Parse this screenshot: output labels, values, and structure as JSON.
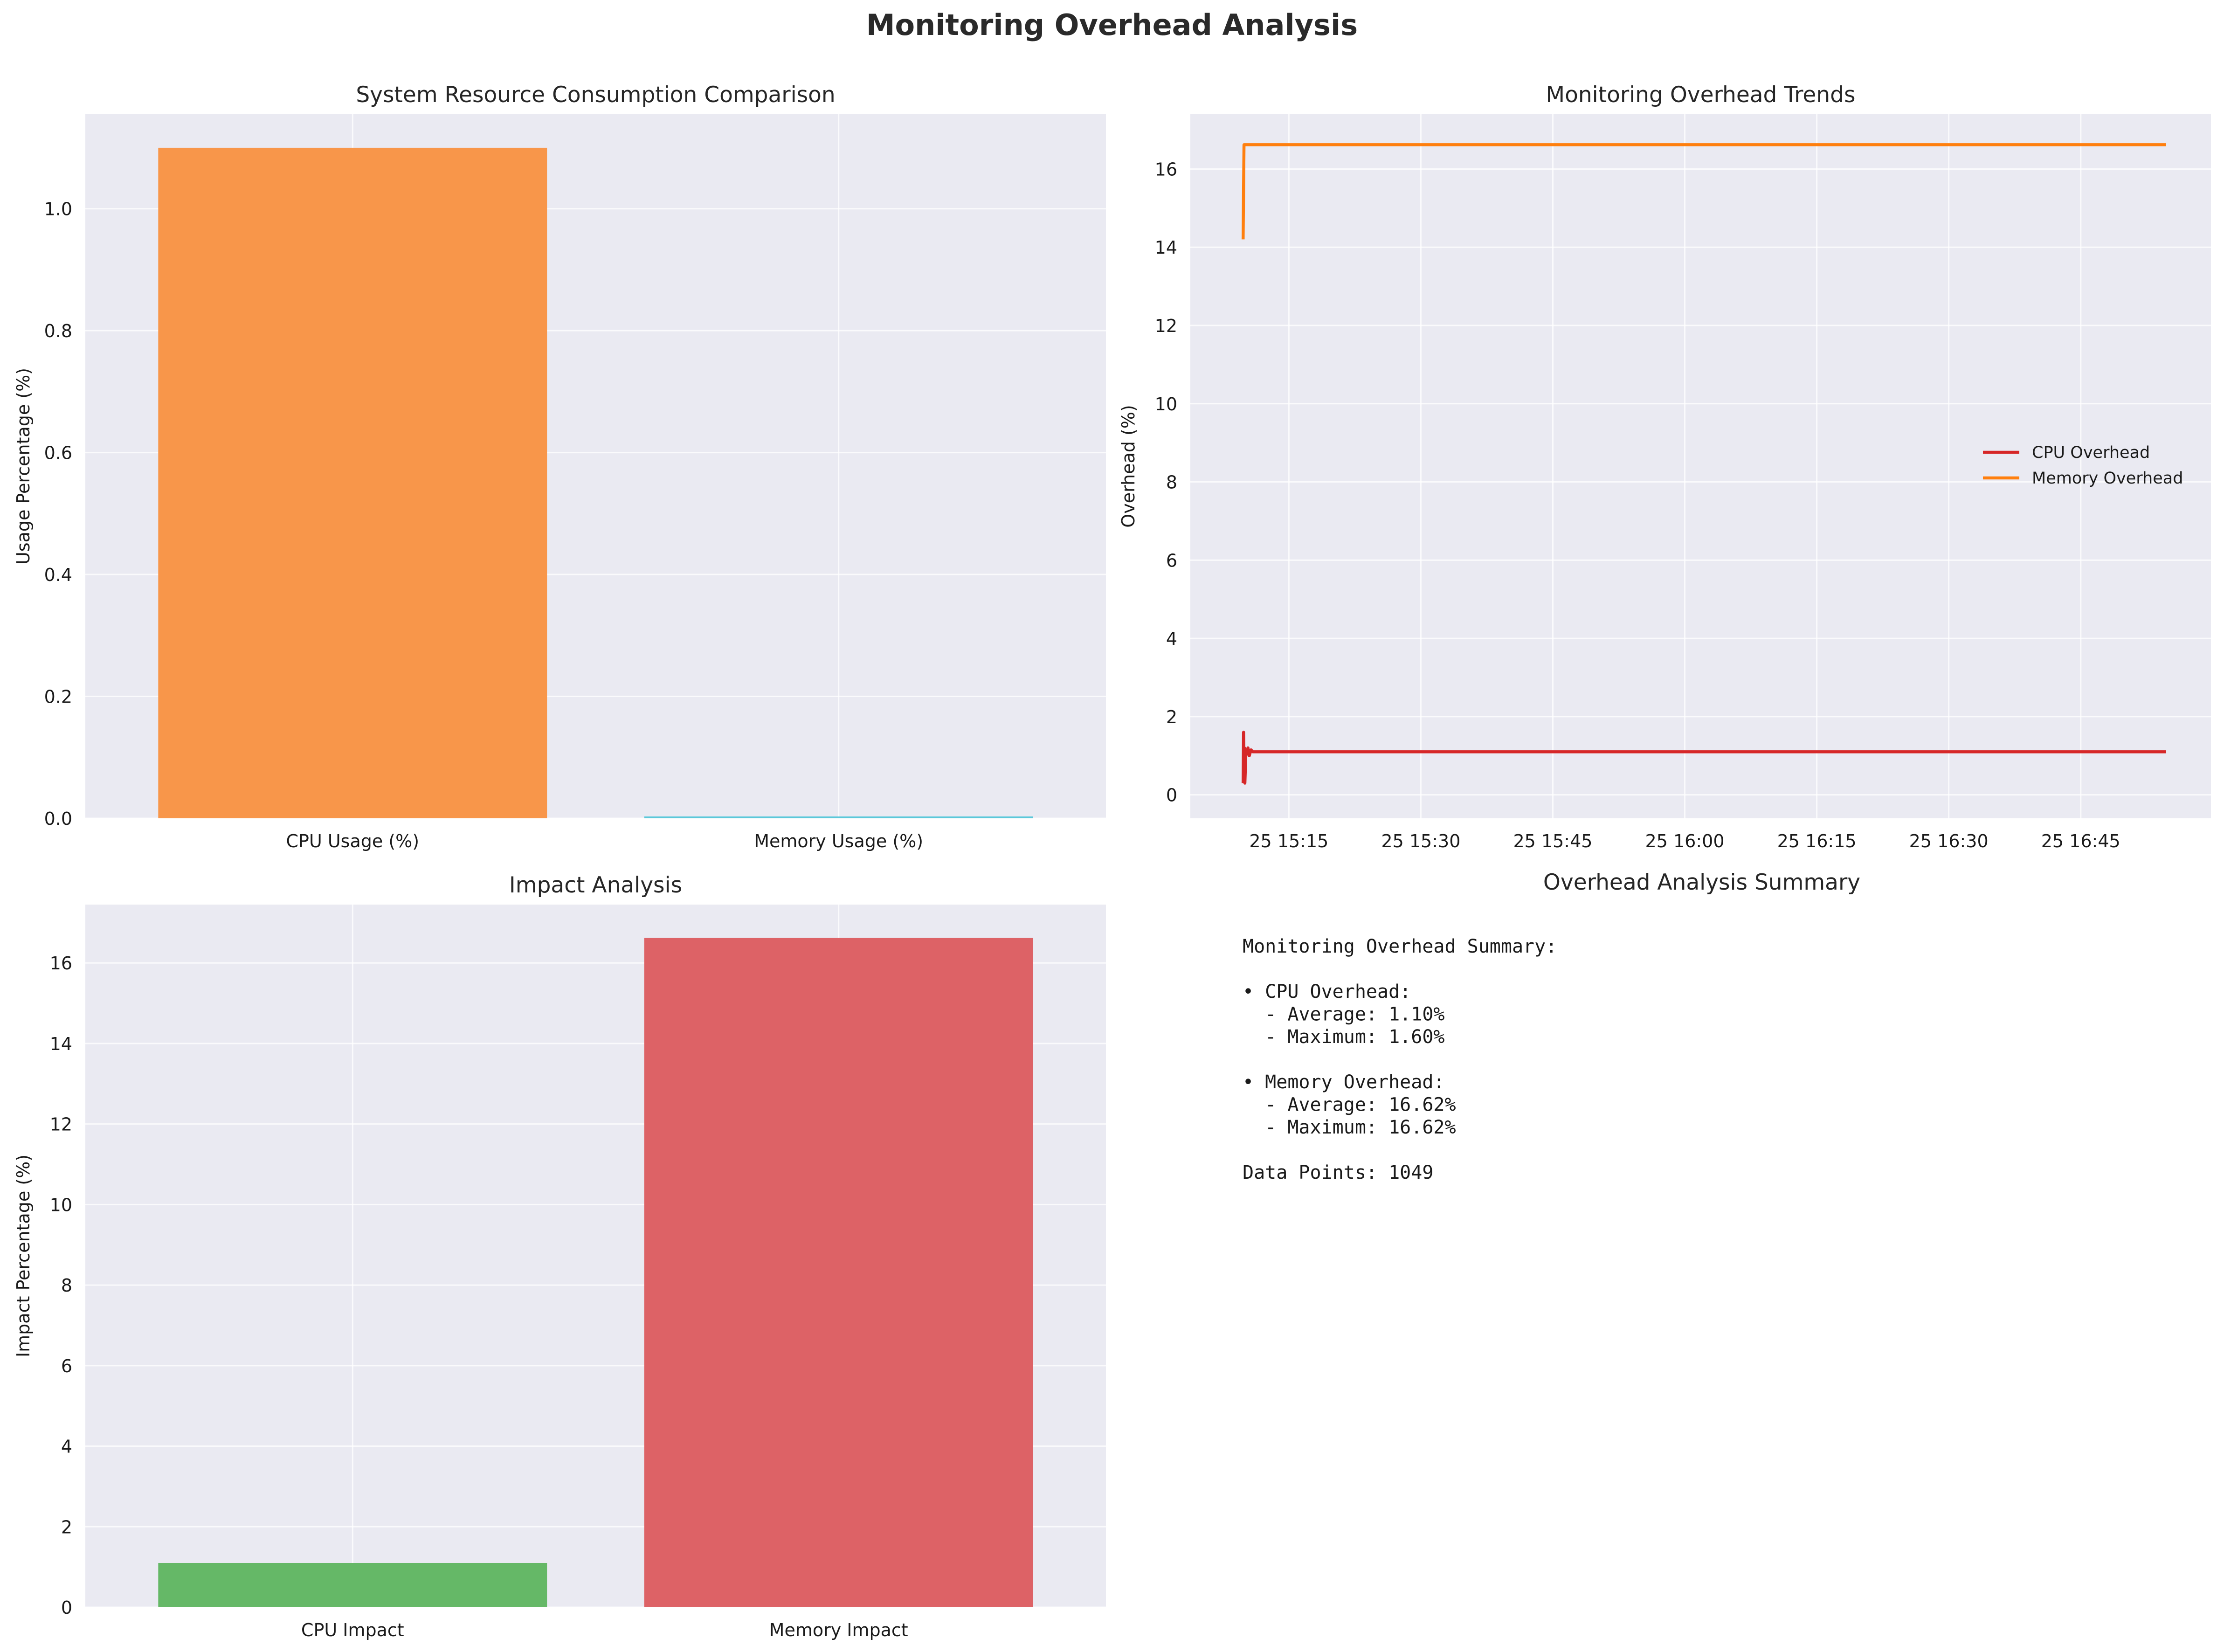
{
  "figure": {
    "title": "Monitoring Overhead Analysis"
  },
  "chart_data": [
    {
      "type": "bar",
      "title": "System Resource Consumption Comparison",
      "xlabel": "",
      "ylabel": "Usage Percentage (%)",
      "categories": [
        "CPU Usage (%)",
        "Memory Usage (%)"
      ],
      "values": [
        1.1,
        0.003
      ],
      "bar_colors": [
        "#f8964a",
        "#5bc8da"
      ],
      "ylim": [
        0,
        1.155
      ],
      "yticks": [
        "0.0",
        "0.2",
        "0.4",
        "0.6",
        "0.8",
        "1.0"
      ],
      "grid": true
    },
    {
      "type": "line",
      "title": "Monitoring Overhead Trends",
      "xlabel": "",
      "ylabel": "Overhead (%)",
      "x_tick_labels": [
        "25 15:15",
        "25 15:30",
        "25 15:45",
        "25 16:00",
        "25 16:15",
        "25 16:30",
        "25 16:45"
      ],
      "x_tick_minutes": [
        15,
        30,
        45,
        60,
        75,
        90,
        105
      ],
      "xlim_minutes": [
        3.8,
        119.8
      ],
      "ylim": [
        -0.6,
        17.4
      ],
      "yticks": [
        "0",
        "2",
        "4",
        "6",
        "8",
        "10",
        "12",
        "14",
        "16"
      ],
      "legend_position": "center-right",
      "grid": true,
      "series": [
        {
          "name": "CPU Overhead",
          "color": "#d62728",
          "x_minutes": [
            9.8,
            9.85,
            9.9,
            9.95,
            10.0,
            10.1,
            10.2,
            10.35,
            10.5,
            10.7,
            10.9,
            11.2,
            12.0,
            20,
            40,
            60,
            80,
            100,
            114.7
          ],
          "values": [
            0.3,
            1.6,
            0.9,
            1.2,
            0.3,
            1.0,
            1.05,
            1.2,
            1.0,
            1.15,
            1.1,
            1.1,
            1.1,
            1.1,
            1.1,
            1.1,
            1.1,
            1.1,
            1.1
          ]
        },
        {
          "name": "Memory Overhead",
          "color": "#ff7f0e",
          "x_minutes": [
            9.8,
            9.9,
            10.0,
            20,
            40,
            60,
            80,
            100,
            114.7
          ],
          "values": [
            14.2,
            16.62,
            16.62,
            16.62,
            16.62,
            16.62,
            16.62,
            16.62,
            16.62
          ]
        }
      ]
    },
    {
      "type": "bar",
      "title": "Impact Analysis",
      "xlabel": "",
      "ylabel": "Impact Percentage (%)",
      "categories": [
        "CPU Impact",
        "Memory Impact"
      ],
      "values": [
        1.1,
        16.62
      ],
      "bar_colors": [
        "#65b867",
        "#dd6266"
      ],
      "ylim": [
        0,
        17.45
      ],
      "yticks": [
        "0",
        "2",
        "4",
        "6",
        "8",
        "10",
        "12",
        "14",
        "16"
      ],
      "grid": true
    }
  ],
  "summary": {
    "title": "Overhead Analysis Summary",
    "lines": [
      "Monitoring Overhead Summary:",
      "",
      "• CPU Overhead:",
      "  - Average: 1.10%",
      "  - Maximum: 1.60%",
      "",
      "• Memory Overhead:",
      "  - Average: 16.62%",
      "  - Maximum: 16.62%",
      "",
      "Data Points: 1049"
    ]
  }
}
